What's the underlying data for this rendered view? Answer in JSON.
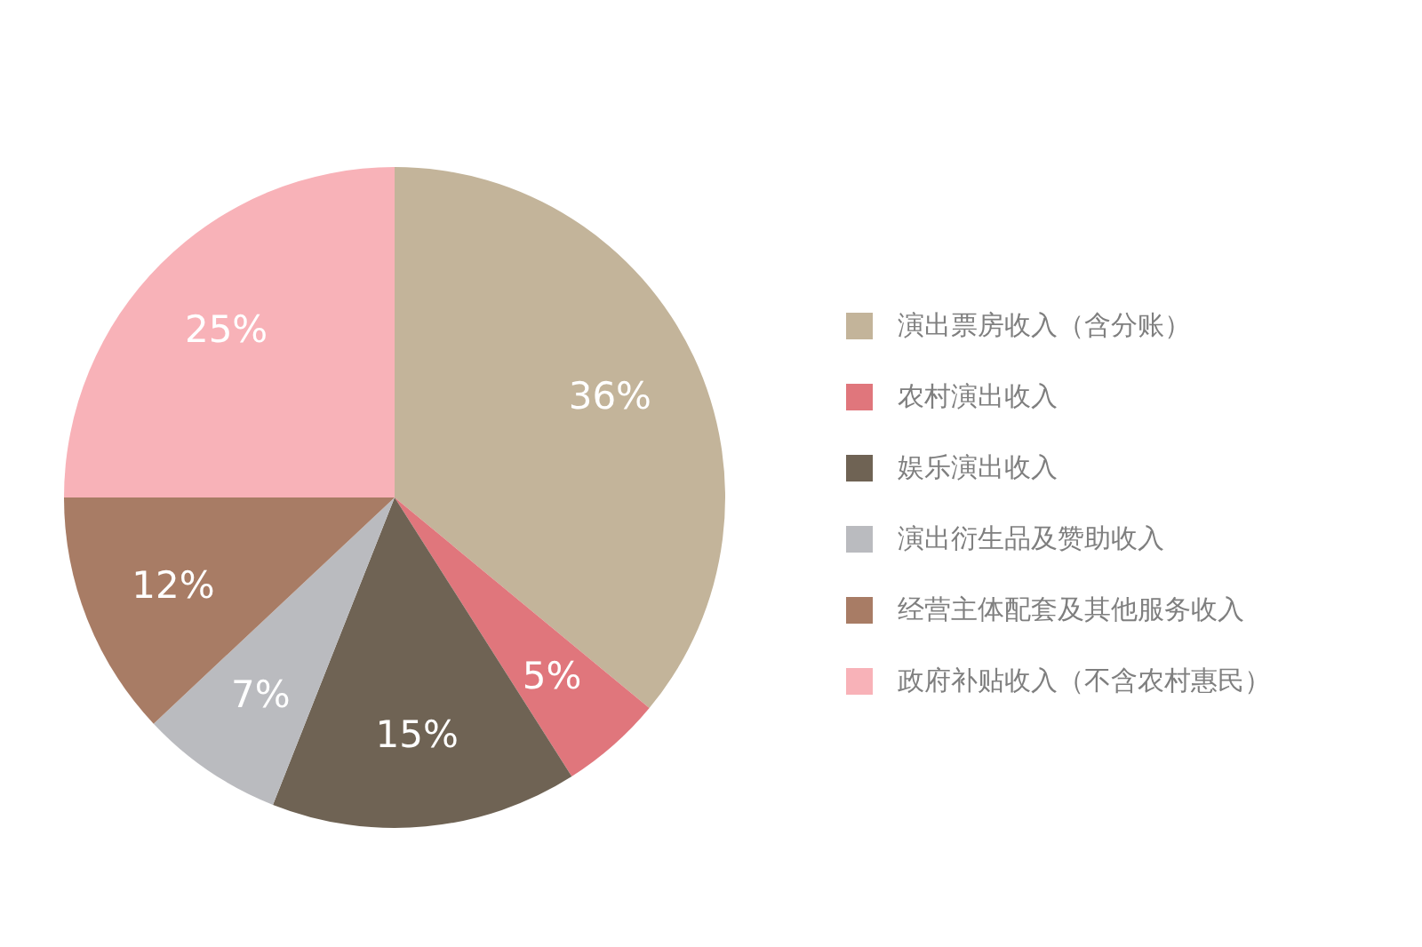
{
  "chart_data": {
    "type": "pie",
    "categories": [
      "演出票房收入（含分账）",
      "农村演出收入",
      "娱乐演出收入",
      "演出衍生品及赞助收入",
      "经营主体配套及其他服务收入",
      "政府补贴收入（不含农村惠民）"
    ],
    "values": [
      36,
      5,
      15,
      7,
      12,
      25
    ],
    "colors": [
      "#c3b49a",
      "#e0767c",
      "#6f6354",
      "#babbbf",
      "#a87c65",
      "#f8b2b8"
    ],
    "value_labels": [
      "36%",
      "5%",
      "15%",
      "7%",
      "12%",
      "25%"
    ],
    "legend": "right"
  }
}
